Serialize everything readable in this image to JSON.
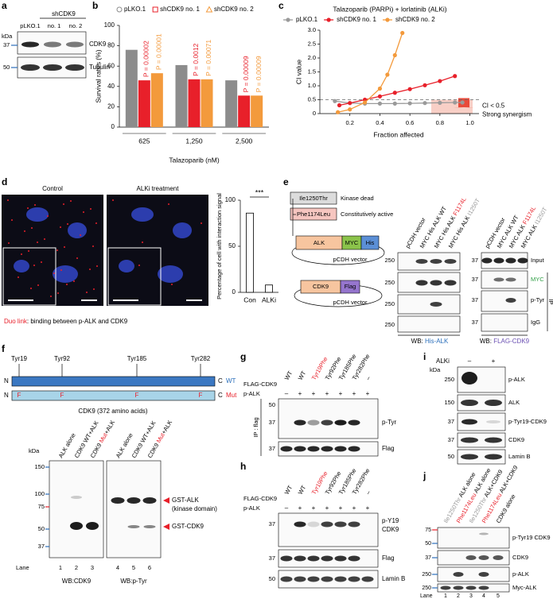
{
  "panel_labels": [
    "a",
    "b",
    "c",
    "d",
    "e",
    "f",
    "g",
    "h",
    "i",
    "j"
  ],
  "chart_data": [
    {
      "type": "bar",
      "ylabel": "Survival rates (%)",
      "xlabel": "Talazoparib (nM)",
      "categories": [
        "625",
        "1,250",
        "2,500"
      ],
      "series": [
        {
          "name": "pLKO.1",
          "color": "#8c8c8c",
          "marker": "circle",
          "values": [
            76,
            61,
            46
          ]
        },
        {
          "name": "shCDK9 no. 1",
          "color": "#e8202a",
          "marker": "square",
          "values": [
            46,
            47,
            31
          ]
        },
        {
          "name": "shCDK9 no. 2",
          "color": "#f39a3c",
          "marker": "triangle",
          "values": [
            53,
            47,
            31
          ]
        }
      ],
      "p_values": [
        [
          "P = 0.00002",
          "P = 0.0012",
          "P = 0.00009"
        ],
        [
          "P = 0.00001",
          "P = 0.00071",
          "P = 0.00009"
        ]
      ],
      "ylim": [
        0,
        100
      ],
      "yticks": [
        0,
        20,
        40,
        60,
        80,
        100
      ]
    },
    {
      "type": "line",
      "title": "Talazoparib (PARPi) + lorlatinib (ALKi)",
      "ylabel": "CI value",
      "xlabel": "Fraction affected",
      "series": [
        {
          "name": "pLKO.1",
          "color": "#9a9a9a",
          "x": [
            0.1,
            0.2,
            0.3,
            0.4,
            0.5,
            0.6,
            0.7,
            0.8,
            0.9,
            0.95
          ],
          "values": [
            0.45,
            0.38,
            0.36,
            0.36,
            0.36,
            0.37,
            0.38,
            0.39,
            0.4,
            0.4
          ]
        },
        {
          "name": "shCDK9 no. 1",
          "color": "#e8202a",
          "x": [
            0.13,
            0.2,
            0.3,
            0.4,
            0.5,
            0.6,
            0.7,
            0.8,
            0.9
          ],
          "values": [
            0.3,
            0.38,
            0.5,
            0.62,
            0.75,
            0.88,
            1.02,
            1.17,
            1.35
          ]
        },
        {
          "name": "shCDK9 no. 2",
          "color": "#f39a3c",
          "x": [
            0.12,
            0.2,
            0.3,
            0.4,
            0.45,
            0.5,
            0.55
          ],
          "values": [
            0.05,
            0.15,
            0.4,
            0.9,
            1.4,
            2.1,
            2.9
          ]
        }
      ],
      "xlim": [
        0,
        1.05
      ],
      "ylim": [
        0,
        3
      ],
      "xticks": [
        0.2,
        0.4,
        0.6,
        0.8,
        {
          "value": 1,
          "label": "1.0"
        }
      ],
      "yticks": [
        0,
        0.5,
        {
          "value": 1,
          "label": "1.0"
        },
        1.5,
        {
          "value": 2,
          "label": "2.0"
        },
        2.5,
        {
          "value": 3,
          "label": "3.0"
        }
      ],
      "reference_line": 0.5,
      "annotations": [
        "CI < 0.5",
        "Strong synergism"
      ]
    },
    {
      "type": "bar",
      "ylabel": "Percentage of cell with interaction signal",
      "categories": [
        "Con",
        "ALKi"
      ],
      "values": [
        86,
        8
      ],
      "color": "#ffffff",
      "ylim": [
        0,
        100
      ],
      "yticks": [
        0,
        50,
        100
      ],
      "significance": "***"
    }
  ],
  "a": {
    "group": "shCDK9",
    "lanes": [
      "pLKO.1",
      "no. 1",
      "no. 2"
    ],
    "kda_label": "kDa",
    "markers": [
      "37",
      "50"
    ],
    "proteins": [
      "CDK9",
      "Tubulin"
    ]
  },
  "d_images": {
    "titles": [
      "Control",
      "ALKi treatment"
    ],
    "caption": [
      {
        "text": "Duo link",
        "color": "#e8202a"
      },
      {
        "text": ": binding between p-ALK and CDK9"
      }
    ]
  },
  "e": {
    "mutations": [
      {
        "name": "Ile1250Thr",
        "effect": "Kinase dead"
      },
      {
        "name": "Phe1174Leu",
        "effect": "Constitutively active"
      }
    ],
    "construct1": {
      "parts": [
        "ALK",
        "MYC",
        "His"
      ],
      "vector": "pCDH vector"
    },
    "construct2": {
      "parts": [
        "CDK9",
        "Flag"
      ],
      "vector": "pCDH vector"
    },
    "left_blot": {
      "lanes": [
        "pCDH vector",
        "MYC His ALK WT",
        [
          {
            "text": "MYC His ALK "
          },
          {
            "text": "F1174L",
            "color": "#e8202a"
          }
        ],
        [
          {
            "text": "MYC His ALK "
          },
          {
            "text": "I1250T",
            "color": "#999999"
          }
        ]
      ],
      "markers": [
        "250",
        "250",
        "250",
        "250"
      ],
      "wb": [
        {
          "text": "WB: "
        },
        {
          "text": "His-ALK",
          "color": "#2a6ebb"
        }
      ]
    },
    "right_blot": {
      "lanes": [
        "pCDH vector",
        "MYC ALK WT",
        [
          {
            "text": "MYC ALK "
          },
          {
            "text": "F1174L",
            "color": "#e8202a"
          }
        ],
        [
          {
            "text": "MYC ALK "
          },
          {
            "text": "I1250T",
            "color": "#999999"
          }
        ]
      ],
      "markers": [
        "37",
        "37",
        "37",
        "37"
      ],
      "rows": [
        "Input",
        [
          {
            "text": "MYC",
            "color": "#2e9e44"
          }
        ],
        "p-Tyr",
        "IgG"
      ],
      "ip": "IP",
      "wb": [
        {
          "text": "WB: "
        },
        {
          "text": "FLAG-CDK9",
          "color": "#6a4fb3"
        }
      ]
    }
  },
  "f": {
    "sites": [
      "Tyr19",
      "Tyr92",
      "Tyr185",
      "Tyr282"
    ],
    "wt_bar": {
      "n": "N",
      "c": "C",
      "label": "WT"
    },
    "mut_bar": {
      "n": "N",
      "c": "C",
      "label": "Mut",
      "sites": [
        "F",
        "F",
        "F",
        "F"
      ]
    },
    "protein": "CDK9 (372 amino acids)",
    "blot": {
      "lanes": [
        "ALK alone",
        "CDK9 WT+ALK",
        [
          {
            "text": "CDK9 "
          },
          {
            "text": "Mut",
            "color": "#e8202a"
          },
          {
            "text": "+ALK"
          }
        ],
        "ALK alone",
        "CDK9 WT+ALK",
        [
          {
            "text": "CDK9 "
          },
          {
            "text": "Mut",
            "color": "#e8202a"
          },
          {
            "text": "+ALK"
          }
        ]
      ],
      "kda_label": "kDa",
      "markers": [
        "150",
        "100",
        "75",
        "50",
        "37"
      ],
      "bands": [
        "GST-ALK",
        "(kinase domain)",
        "GST-CDK9"
      ],
      "lane_label": "Lane",
      "lane_numbers": [
        "1",
        "2",
        "3",
        "4",
        "5",
        "6"
      ],
      "wb": [
        "WB:CDK9",
        "WB:p-Tyr"
      ]
    }
  },
  "g": {
    "row_labels": [
      "FLAG-CDK9",
      "p-ALK"
    ],
    "lanes": [
      "WT",
      "WT",
      [
        {
          "text": "Tyr19Phe",
          "color": "#e8202a"
        }
      ],
      "Tyr92Phe",
      "Tyr185Phe",
      "Tyr282Phe",
      "–"
    ],
    "signs": [
      "–",
      "+",
      "+",
      "+",
      "+",
      "+",
      "+"
    ],
    "markers": [
      "50",
      "37",
      "37"
    ],
    "proteins": [
      "p-Tyr",
      "Flag"
    ],
    "ip": "IP : flag"
  },
  "h": {
    "row_labels": [
      "FLAG-CDK9",
      "p-ALK"
    ],
    "lanes": [
      "WT",
      "WT",
      [
        {
          "text": "Tyr19Phe",
          "color": "#e8202a"
        }
      ],
      "Tyr92Phe",
      "Tyr185Phe",
      "Tyr282Phe",
      "–"
    ],
    "signs": [
      "–",
      "+",
      "+",
      "+",
      "+",
      "+",
      "+"
    ],
    "markers": [
      "37",
      "37",
      "50"
    ],
    "proteins": [
      "p-Y19",
      "CDK9",
      "Flag",
      "Lamin B"
    ]
  },
  "i": {
    "treatment": "ALKi",
    "signs": [
      "–",
      "+"
    ],
    "kda_label": "kDa",
    "markers": [
      "250",
      "150",
      "37",
      "37",
      "50"
    ],
    "proteins": [
      "p-ALK",
      "ALK",
      "p-Tyr19-CDK9",
      "CDK9",
      "Lamin B"
    ]
  },
  "j": {
    "lanes": [
      [
        {
          "text": "Ile1250Thr",
          "color": "#999999"
        },
        {
          "text": " ALK alone"
        }
      ],
      [
        {
          "text": "Phe1174Leu",
          "color": "#e8202a"
        },
        {
          "text": " ALK alone"
        }
      ],
      [
        {
          "text": "Ile1250Thr",
          "color": "#999999"
        },
        {
          "text": " ALK+CDK9"
        }
      ],
      [
        {
          "text": "Phe1174Leu",
          "color": "#e8202a"
        },
        {
          "text": " ALK+CDK9"
        }
      ],
      "CDK9 alone"
    ],
    "markers": [
      "75",
      "50",
      "37",
      "250",
      "250"
    ],
    "proteins": [
      "p-Tyr19 CDK9",
      "CDK9",
      "p-ALK",
      "Myc-ALK"
    ],
    "lane_label": "Lane",
    "lane_numbers": [
      "1",
      "2",
      "3",
      "4",
      "5"
    ]
  }
}
